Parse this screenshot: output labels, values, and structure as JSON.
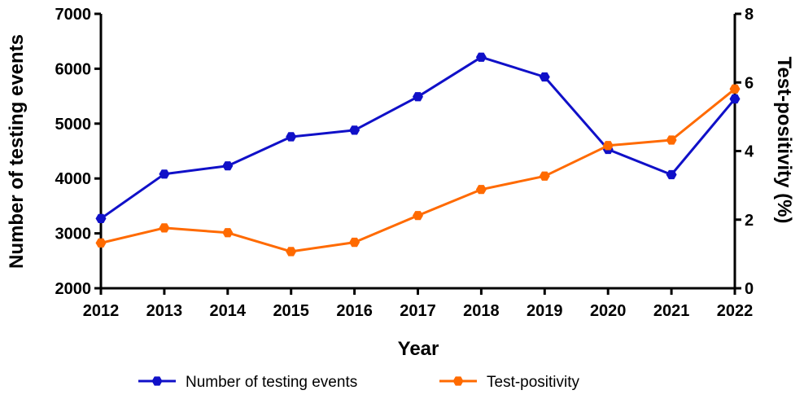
{
  "chart_data": {
    "type": "line",
    "x": [
      2012,
      2013,
      2014,
      2015,
      2016,
      2017,
      2018,
      2019,
      2020,
      2021,
      2022
    ],
    "xlabel": "Year",
    "ylabel_left": "Number of testing events",
    "ylabel_right": "Test-positivity  (%)",
    "ylim_left": [
      2000,
      7000
    ],
    "ylim_right": [
      0,
      8
    ],
    "yticks_left": [
      2000,
      3000,
      4000,
      5000,
      6000,
      7000
    ],
    "yticks_right": [
      0,
      2,
      4,
      6,
      8
    ],
    "grid": false,
    "legend_position": "bottom",
    "series": [
      {
        "name": "Number of testing events",
        "axis": "left",
        "color": "#1010c8",
        "marker": "hexagon",
        "values": [
          3270,
          4080,
          4230,
          4760,
          4880,
          5490,
          6210,
          5850,
          4530,
          4070,
          5450
        ]
      },
      {
        "name": "Test-positivity",
        "axis": "right",
        "color": "#ff6a00",
        "marker": "hexagon",
        "values": [
          1.32,
          1.76,
          1.62,
          1.07,
          1.34,
          2.12,
          2.88,
          3.27,
          4.16,
          4.32,
          5.81
        ]
      }
    ]
  }
}
